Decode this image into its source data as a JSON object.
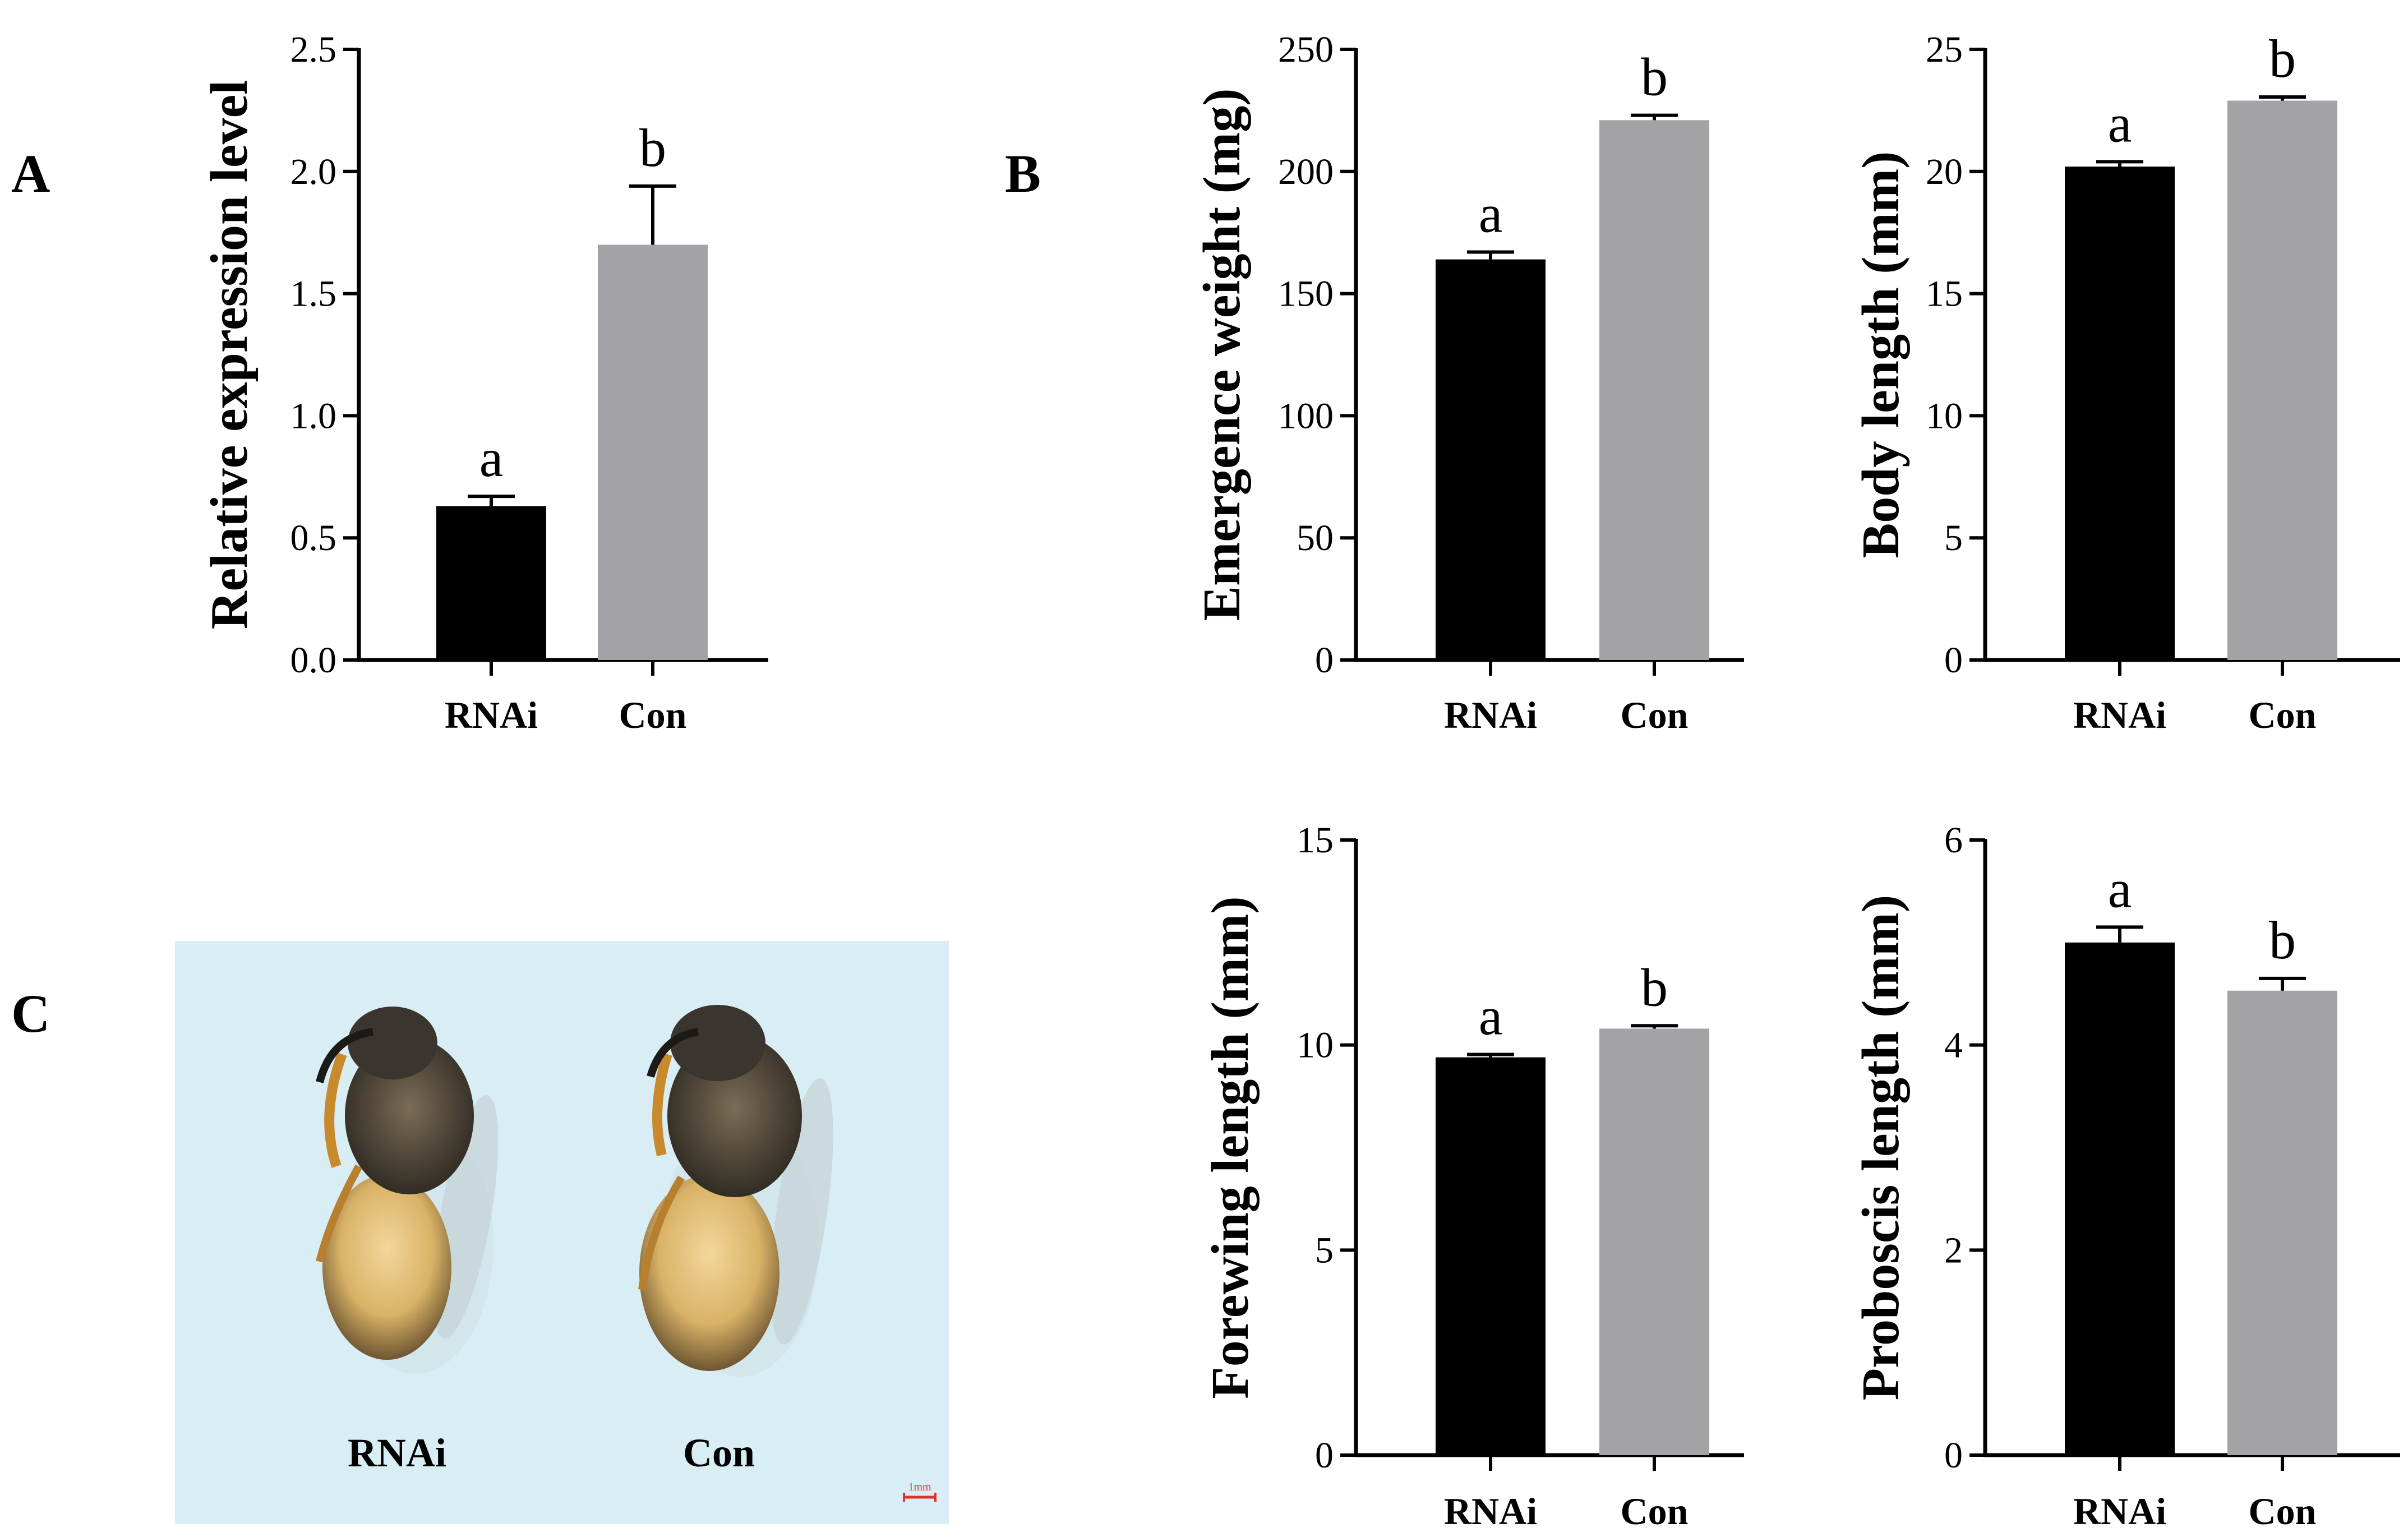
{
  "panel_labels": [
    "A",
    "B",
    "C"
  ],
  "colors": {
    "rnai": "#000000",
    "con": "#a3a2a7",
    "photo_bg": "#d9eef4",
    "scale_bar": "#e0302a"
  },
  "chart_data": [
    {
      "id": "A",
      "type": "bar",
      "title": "",
      "xlabel": "",
      "ylabel": "Relative expression level",
      "categories": [
        "RNAi",
        "Con"
      ],
      "values": [
        0.63,
        1.7
      ],
      "errors": [
        0.04,
        0.24
      ],
      "sig_letters": [
        "a",
        "b"
      ],
      "ylim": [
        0,
        2.5
      ],
      "yticks": [
        0,
        0.5,
        1.0,
        1.5,
        2.0,
        2.5
      ],
      "ytick_labels": [
        "0.0",
        "0.5",
        "1.0",
        "1.5",
        "2.0",
        "2.5"
      ],
      "grid": false,
      "legend": "none"
    },
    {
      "id": "B1",
      "type": "bar",
      "title": "",
      "xlabel": "",
      "ylabel": "Emergence weight (mg)",
      "categories": [
        "RNAi",
        "Con"
      ],
      "values": [
        164,
        221
      ],
      "errors": [
        3,
        2
      ],
      "sig_letters": [
        "a",
        "b"
      ],
      "ylim": [
        0,
        250
      ],
      "yticks": [
        0,
        50,
        100,
        150,
        200,
        250
      ],
      "ytick_labels": [
        "0",
        "50",
        "100",
        "150",
        "200",
        "250"
      ],
      "grid": false,
      "legend": "none"
    },
    {
      "id": "B2",
      "type": "bar",
      "title": "",
      "xlabel": "",
      "ylabel": "Body length (mm)",
      "categories": [
        "RNAi",
        "Con"
      ],
      "values": [
        20.2,
        22.9
      ],
      "errors": [
        0.2,
        0.15
      ],
      "sig_letters": [
        "a",
        "b"
      ],
      "ylim": [
        0,
        25
      ],
      "yticks": [
        0,
        5,
        10,
        15,
        20,
        25
      ],
      "ytick_labels": [
        "0",
        "5",
        "10",
        "15",
        "20",
        "25"
      ],
      "grid": false,
      "legend": "none"
    },
    {
      "id": "B3",
      "type": "bar",
      "title": "",
      "xlabel": "",
      "ylabel": "Forewing length (mm)",
      "categories": [
        "RNAi",
        "Con"
      ],
      "values": [
        9.7,
        10.4
      ],
      "errors": [
        0.07,
        0.07
      ],
      "sig_letters": [
        "a",
        "b"
      ],
      "ylim": [
        0,
        15
      ],
      "yticks": [
        0,
        5,
        10,
        15
      ],
      "ytick_labels": [
        "0",
        "5",
        "10",
        "15"
      ],
      "grid": false,
      "legend": "none"
    },
    {
      "id": "B4",
      "type": "bar",
      "title": "",
      "xlabel": "",
      "ylabel": "Proboscis length (mm)",
      "categories": [
        "RNAi",
        "Con"
      ],
      "values": [
        5.0,
        4.53
      ],
      "errors": [
        0.15,
        0.12
      ],
      "sig_letters": [
        "a",
        "b"
      ],
      "ylim": [
        0,
        6
      ],
      "yticks": [
        0,
        2,
        4,
        6
      ],
      "ytick_labels": [
        "0",
        "2",
        "4",
        "6"
      ],
      "grid": false,
      "legend": "none"
    }
  ],
  "photo": {
    "labels": [
      "RNAi",
      "Con"
    ],
    "scale_bar_text": "1mm"
  }
}
